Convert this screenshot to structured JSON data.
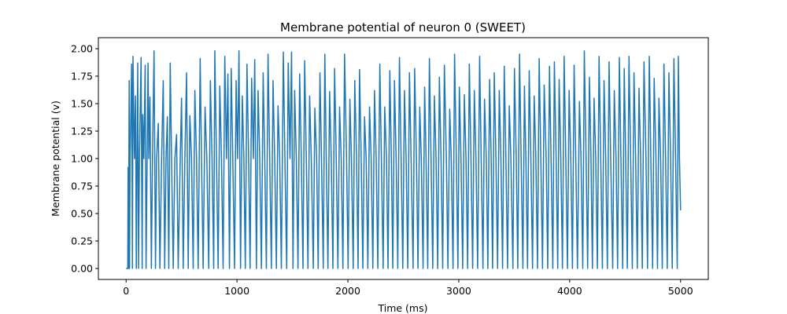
{
  "chart_data": {
    "type": "line",
    "title": "Membrane potential of neuron 0 (SWEET)",
    "xlabel": "Time (ms)",
    "ylabel": "Membrane potential (v)",
    "xlim": [
      -250,
      5250
    ],
    "ylim": [
      -0.1,
      2.1
    ],
    "x_ticks": [
      0,
      1000,
      2000,
      3000,
      4000,
      5000
    ],
    "x_tick_labels": [
      "0",
      "1000",
      "2000",
      "3000",
      "4000",
      "5000"
    ],
    "y_ticks": [
      0.0,
      0.25,
      0.5,
      0.75,
      1.0,
      1.25,
      1.5,
      1.75,
      2.0
    ],
    "y_tick_labels": [
      "0.00",
      "0.25",
      "0.50",
      "0.75",
      "1.00",
      "1.25",
      "1.50",
      "1.75",
      "2.00"
    ],
    "grid": false,
    "line_color": "#1f77b4",
    "series": [
      {
        "x": [
          0,
          15,
          18,
          21,
          28,
          31,
          36,
          50,
          57,
          62,
          75,
          85,
          92,
          105,
          112,
          120,
          135,
          145,
          150,
          160,
          172,
          180,
          198,
          205,
          215,
          228,
          238,
          252,
          265,
          275,
          290,
          305,
          320,
          335,
          348,
          360,
          372,
          385,
          398,
          410,
          425,
          440,
          455,
          470,
          488,
          500,
          515,
          530,
          545,
          560,
          575,
          590,
          605,
          620,
          635,
          650,
          668,
          680,
          695,
          712,
          728,
          745,
          760,
          775,
          790,
          800,
          815,
          830,
          845,
          860,
          875,
          890,
          905,
          918,
          932,
          948,
          962,
          978,
          992,
          1005,
          1018,
          1032,
          1048,
          1062,
          1075,
          1090,
          1105,
          1118,
          1132,
          1148,
          1160,
          1175,
          1190,
          1205,
          1220,
          1236,
          1250,
          1265,
          1280,
          1295,
          1310,
          1325,
          1340,
          1355,
          1370,
          1385,
          1400,
          1418,
          1432,
          1448,
          1462,
          1478,
          1492,
          1505,
          1520,
          1535,
          1550,
          1565,
          1580,
          1595,
          1610,
          1625,
          1640,
          1655,
          1670,
          1688,
          1702,
          1718,
          1732,
          1748,
          1762,
          1778,
          1792,
          1805,
          1820,
          1835,
          1850,
          1865,
          1880,
          1895,
          1910,
          1925,
          1940,
          1955,
          1970,
          1988,
          2002,
          2018,
          2032,
          2048,
          2062,
          2078,
          2092,
          2105,
          2120,
          2135,
          2150,
          2165,
          2180,
          2195,
          2210,
          2225,
          2240,
          2255,
          2270,
          2288,
          2302,
          2318,
          2332,
          2348,
          2362,
          2378,
          2392,
          2405,
          2420,
          2435,
          2450,
          2465,
          2480,
          2495,
          2510,
          2525,
          2540,
          2555,
          2570,
          2588,
          2602,
          2618,
          2632,
          2648,
          2662,
          2678,
          2692,
          2705,
          2720,
          2735,
          2750,
          2765,
          2780,
          2795,
          2810,
          2825,
          2840,
          2855,
          2870,
          2888,
          2902,
          2918,
          2932,
          2948,
          2962,
          2978,
          2992,
          3005,
          3020,
          3035,
          3050,
          3065,
          3080,
          3095,
          3110,
          3125,
          3140,
          3155,
          3170,
          3188,
          3202,
          3218,
          3232,
          3248,
          3262,
          3278,
          3292,
          3305,
          3320,
          3335,
          3350,
          3365,
          3380,
          3395,
          3410,
          3425,
          3440,
          3455,
          3470,
          3488,
          3502,
          3518,
          3532,
          3548,
          3562,
          3578,
          3592,
          3605,
          3620,
          3635,
          3650,
          3665,
          3680,
          3695,
          3710,
          3725,
          3740,
          3755,
          3770,
          3788,
          3802,
          3818,
          3832,
          3848,
          3862,
          3878,
          3892,
          3905,
          3920,
          3935,
          3950,
          3965,
          3980,
          3995,
          4010,
          4025,
          4040,
          4055,
          4070,
          4088,
          4102,
          4118,
          4132,
          4148,
          4162,
          4178,
          4192,
          4205,
          4220,
          4235,
          4250,
          4265,
          4280,
          4295,
          4310,
          4325,
          4340,
          4355,
          4370,
          4388,
          4402,
          4418,
          4432,
          4448,
          4462,
          4478,
          4492,
          4505,
          4520,
          4535,
          4550,
          4565,
          4580,
          4595,
          4610,
          4625,
          4640,
          4655,
          4670,
          4688,
          4702,
          4718,
          4732,
          4748,
          4762,
          4778,
          4792,
          4805,
          4820,
          4835,
          4850,
          4865,
          4880,
          4895,
          4910,
          4925,
          4940,
          4955,
          4970,
          4980,
          4990,
          5000
        ],
        "y": [
          0.0,
          0.0,
          0.92,
          0.0,
          1.71,
          0.0,
          1.0,
          1.86,
          0.0,
          1.93,
          1.0,
          1.57,
          0.0,
          1.87,
          0.0,
          1.0,
          1.92,
          0.0,
          1.4,
          1.0,
          1.85,
          0.0,
          1.87,
          1.0,
          1.56,
          0.0,
          1.0,
          1.98,
          0.0,
          1.0,
          1.32,
          0.0,
          1.0,
          1.71,
          0.0,
          1.0,
          1.38,
          0.0,
          1.87,
          1.0,
          0.0,
          1.0,
          1.22,
          0.0,
          1.0,
          1.55,
          0.0,
          1.0,
          1.78,
          0.0,
          1.39,
          1.0,
          0.0,
          1.62,
          1.0,
          0.0,
          1.91,
          1.0,
          0.0,
          1.47,
          1.0,
          0.0,
          1.71,
          1.0,
          0.0,
          1.98,
          1.0,
          0.0,
          1.66,
          1.0,
          0.0,
          1.93,
          1.0,
          1.77,
          0.0,
          1.82,
          1.0,
          0.0,
          1.71,
          1.0,
          1.98,
          0.0,
          1.57,
          1.0,
          0.0,
          1.86,
          1.0,
          0.0,
          1.73,
          1.0,
          1.9,
          0.0,
          1.62,
          1.0,
          0.0,
          1.78,
          1.0,
          0.0,
          1.95,
          1.0,
          0.0,
          1.71,
          1.0,
          0.0,
          1.48,
          1.0,
          0.0,
          1.97,
          1.0,
          0.0,
          1.87,
          1.0,
          1.97,
          0.0,
          1.62,
          1.0,
          0.0,
          1.77,
          1.0,
          0.0,
          1.89,
          1.0,
          0.0,
          1.57,
          1.0,
          0.0,
          1.46,
          1.0,
          0.0,
          1.78,
          1.0,
          0.0,
          1.95,
          1.0,
          0.0,
          1.61,
          1.0,
          0.0,
          1.82,
          1.0,
          0.0,
          1.47,
          1.0,
          0.0,
          1.95,
          1.0,
          0.0,
          1.54,
          1.0,
          0.0,
          1.71,
          1.0,
          0.0,
          1.81,
          1.0,
          0.0,
          1.38,
          1.0,
          0.0,
          1.47,
          1.0,
          0.0,
          1.62,
          1.0,
          0.0,
          1.86,
          1.0,
          0.0,
          1.47,
          1.0,
          0.0,
          1.8,
          1.0,
          0.0,
          1.71,
          1.0,
          0.0,
          1.92,
          1.0,
          0.0,
          1.62,
          1.0,
          0.0,
          1.78,
          1.0,
          0.0,
          1.82,
          1.0,
          0.0,
          1.47,
          1.0,
          0.0,
          1.65,
          1.0,
          0.0,
          1.91,
          1.0,
          0.0,
          1.57,
          1.0,
          0.0,
          1.74,
          1.0,
          0.0,
          1.85,
          1.0,
          0.0,
          1.45,
          1.0,
          0.0,
          1.95,
          1.0,
          0.0,
          1.65,
          1.0,
          0.0,
          1.58,
          1.0,
          0.0,
          1.86,
          1.0,
          0.0,
          1.62,
          1.0,
          0.0,
          1.93,
          1.0,
          0.0,
          1.54,
          1.0,
          0.0,
          1.72,
          1.0,
          0.0,
          1.78,
          1.0,
          0.0,
          1.62,
          1.0,
          0.0,
          1.84,
          1.0,
          0.0,
          1.48,
          1.0,
          0.0,
          1.82,
          1.0,
          0.0,
          1.95,
          1.0,
          0.0,
          1.66,
          1.0,
          0.0,
          1.8,
          1.0,
          0.0,
          1.57,
          1.0,
          0.0,
          1.91,
          1.0,
          0.0,
          1.67,
          1.0,
          0.0,
          1.84,
          1.0,
          0.0,
          1.88,
          1.0,
          0.0,
          1.72,
          1.0,
          0.0,
          1.93,
          1.0,
          0.0,
          1.62,
          1.0,
          0.0,
          1.85,
          1.0,
          0.0,
          1.52,
          1.0,
          0.0,
          1.98,
          1.0,
          0.0,
          1.74,
          1.0,
          0.0,
          1.55,
          1.0,
          0.0,
          1.93,
          1.0,
          0.0,
          1.71,
          1.0,
          0.0,
          1.88,
          1.0,
          0.0,
          1.62,
          1.0,
          0.0,
          1.92,
          1.0,
          0.0,
          1.82,
          1.0,
          0.0,
          1.93,
          1.0,
          0.0,
          1.78,
          1.0,
          0.0,
          1.64,
          1.0,
          0.0,
          1.88,
          1.0,
          0.0,
          1.93,
          1.0,
          0.0,
          1.73,
          1.0,
          0.0,
          1.55,
          1.0,
          0.0,
          1.86,
          1.0,
          0.0,
          1.78,
          1.0,
          0.0,
          1.91,
          1.0,
          0.0,
          1.93,
          1.0,
          0.53
        ]
      }
    ]
  }
}
